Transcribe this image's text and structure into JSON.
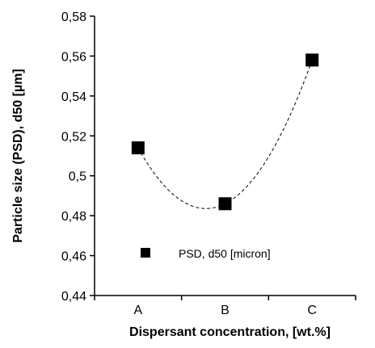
{
  "chart_data": {
    "type": "scatter",
    "title": "",
    "xlabel": "Dispersant concentration, [wt.%]",
    "ylabel": "Particle size (PSD), d50 [µm]",
    "categories": [
      "A",
      "B",
      "C"
    ],
    "ylim": [
      0.44,
      0.58
    ],
    "yticks": [
      0.44,
      0.46,
      0.48,
      0.5,
      0.52,
      0.54,
      0.56,
      0.58
    ],
    "ytick_labels": [
      "0,44",
      "0,46",
      "0,48",
      "0,5",
      "0,52",
      "0,54",
      "0,56",
      "0,58"
    ],
    "grid": false,
    "legend_position": "lower-center",
    "series": [
      {
        "name": "PSD, d50 [micron]",
        "marker": "square",
        "color": "#000000",
        "values": [
          0.514,
          0.486,
          0.558
        ]
      }
    ],
    "trendline": {
      "type": "polynomial",
      "order": 2,
      "style": "dashed",
      "color": "#000000"
    }
  }
}
